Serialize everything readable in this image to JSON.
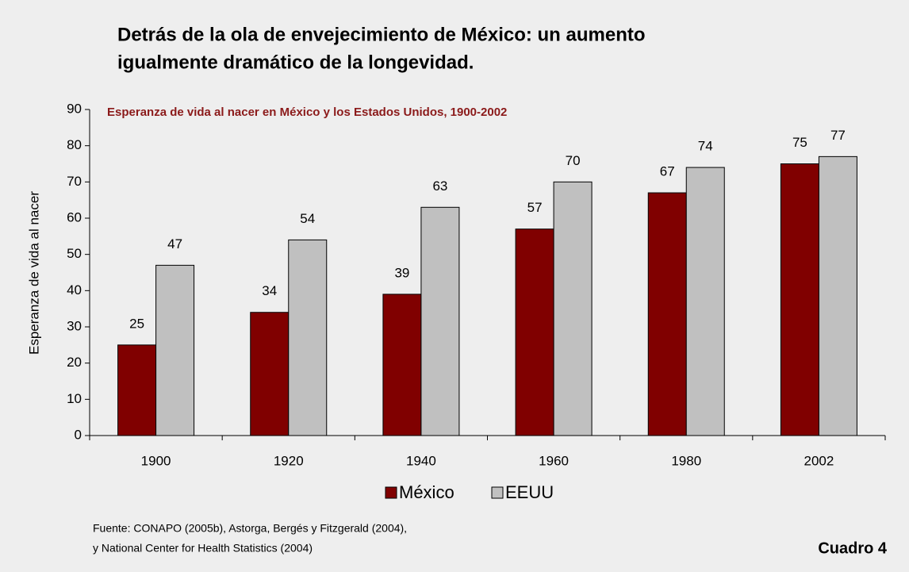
{
  "chart_data": {
    "type": "bar",
    "title": [
      "Detrás de la ola de envejecimiento de México: un aumento",
      "igualmente dramático de la longevidad."
    ],
    "subtitle": "Esperanza de vida al nacer en México y los Estados Unidos, 1900-2002",
    "y_label": "Esperanza de vida al nacer",
    "categories": [
      "1900",
      "1920",
      "1940",
      "1960",
      "1980",
      "2002"
    ],
    "series": [
      {
        "name": "México",
        "color": "#800000",
        "values": [
          25,
          34,
          39,
          57,
          67,
          75
        ]
      },
      {
        "name": "EEUU",
        "color": "#c0c0c0",
        "values": [
          47,
          54,
          63,
          70,
          74,
          77
        ]
      }
    ],
    "ylim": [
      0,
      90
    ],
    "yticks": [
      0,
      10,
      20,
      30,
      40,
      50,
      60,
      70,
      80,
      90
    ],
    "legend": "bottom",
    "source": [
      "Fuente: CONAPO (2005b), Astorga, Bergés y Fitzgerald (2004),",
      "y National Center for Health Statistics (2004)"
    ],
    "label": "Cuadro 4"
  }
}
